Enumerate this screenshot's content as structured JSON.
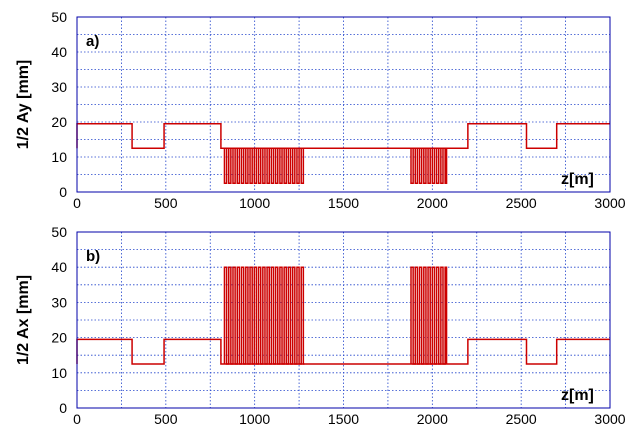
{
  "chart_data": [
    {
      "type": "line",
      "panel_label": "a)",
      "ylabel": "1/2 Ay [mm]",
      "xlabel_inplot": "z[m]",
      "xlim": [
        0,
        3000
      ],
      "ylim": [
        0,
        50
      ],
      "x_ticks": [
        0,
        500,
        1000,
        1500,
        2000,
        2500,
        3000
      ],
      "y_ticks": [
        0,
        10,
        20,
        30,
        40,
        50
      ],
      "x_minor_grid_step": 250,
      "y_minor_grid_step": 5,
      "grid": true,
      "series": [
        {
          "color": "#cc0000",
          "segments": [
            {
              "x": [
                0,
                0,
                310,
                310,
                490,
                490,
                810,
                810,
                2200,
                2200,
                2530,
                2530,
                2700,
                2700,
                3000
              ],
              "y": [
                12.5,
                19.5,
                19.5,
                12.5,
                12.5,
                19.5,
                19.5,
                12.5,
                12.5,
                19.5,
                19.5,
                12.5,
                12.5,
                19.5,
                19.5
              ]
            },
            {
              "x": [
                830,
                1280
              ],
              "y": [
                12.5,
                12.5
              ],
              "oscillate_between": [
                2.5,
                12.5
              ],
              "period": 12
            },
            {
              "x": [
                1880,
                2080
              ],
              "y": [
                12.5,
                12.5
              ],
              "oscillate_between": [
                2.5,
                12.5
              ],
              "period": 12
            }
          ]
        }
      ]
    },
    {
      "type": "line",
      "panel_label": "b)",
      "ylabel": "1/2 Ax [mm]",
      "xlabel_inplot": "z[m]",
      "xlim": [
        0,
        3000
      ],
      "ylim": [
        0,
        50
      ],
      "x_ticks": [
        0,
        500,
        1000,
        1500,
        2000,
        2500,
        3000
      ],
      "y_ticks": [
        0,
        10,
        20,
        30,
        40,
        50
      ],
      "x_minor_grid_step": 250,
      "y_minor_grid_step": 5,
      "grid": true,
      "series": [
        {
          "color": "#cc0000",
          "segments": [
            {
              "x": [
                0,
                0,
                310,
                310,
                490,
                490,
                810,
                810,
                2200,
                2200,
                2530,
                2530,
                2700,
                2700,
                3000
              ],
              "y": [
                12.5,
                19.5,
                19.5,
                12.5,
                12.5,
                19.5,
                19.5,
                12.5,
                12.5,
                19.5,
                19.5,
                12.5,
                12.5,
                19.5,
                19.5
              ]
            },
            {
              "x": [
                830,
                1280
              ],
              "y": [
                12.5,
                12.5
              ],
              "oscillate_between": [
                12.5,
                40
              ],
              "period": 12
            },
            {
              "x": [
                1880,
                2080
              ],
              "y": [
                12.5,
                12.5
              ],
              "oscillate_between": [
                12.5,
                40
              ],
              "period": 12
            }
          ]
        }
      ]
    }
  ]
}
